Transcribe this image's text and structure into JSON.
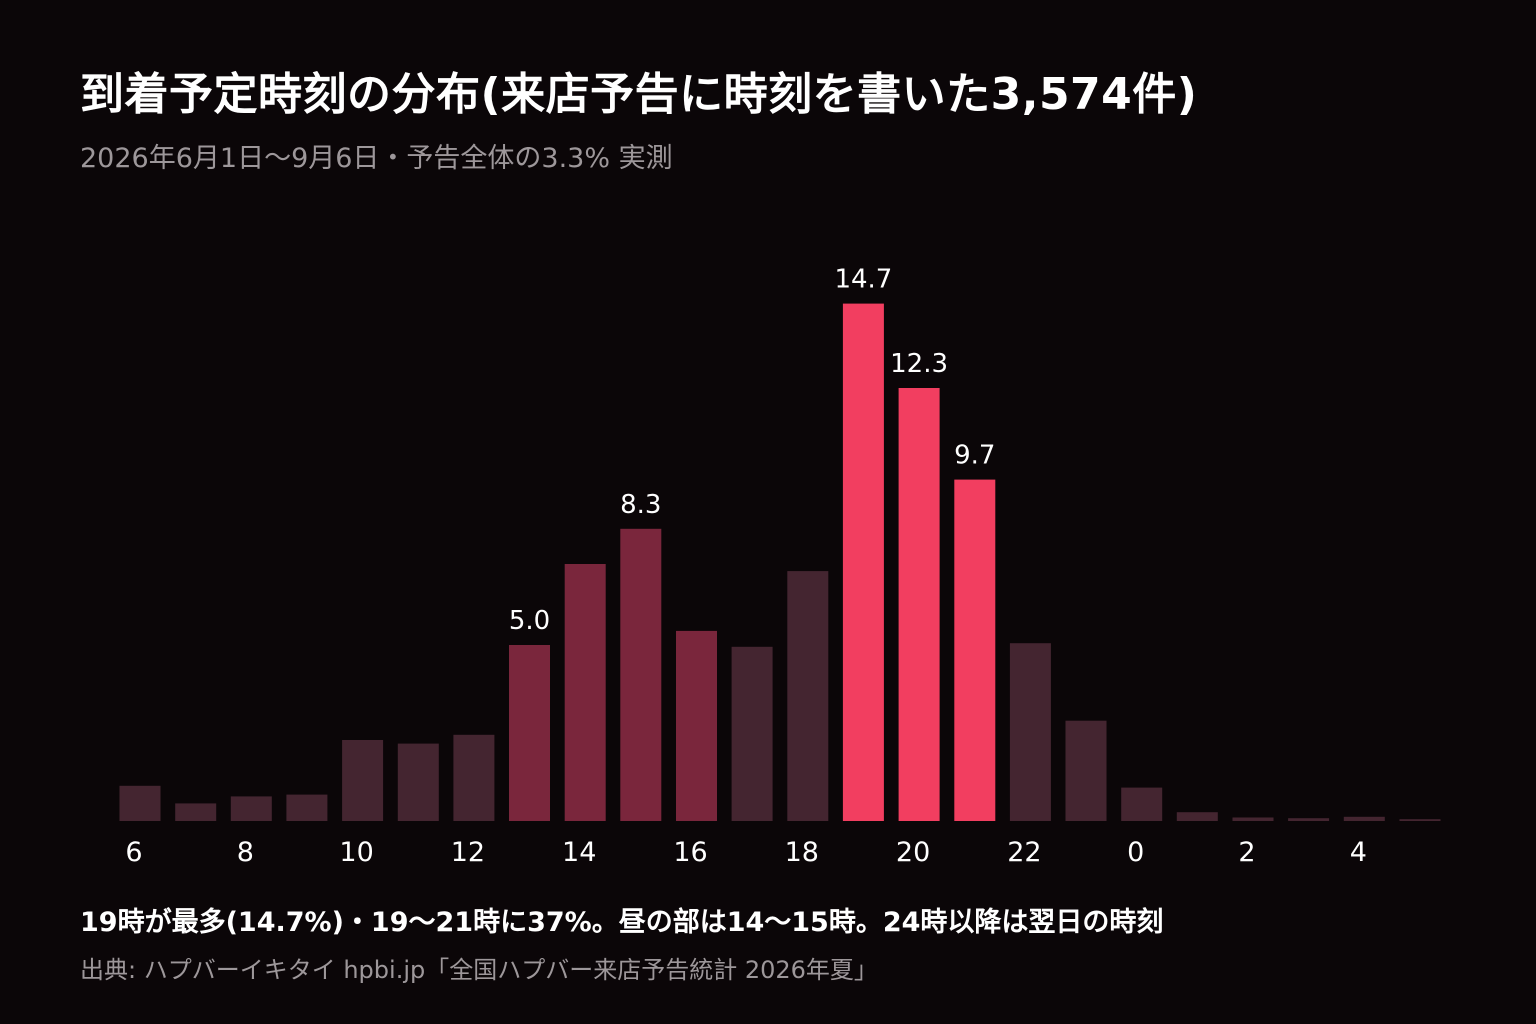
{
  "header": {
    "title": "到着予定時刻の分布(来店予告に時刻を書いた3,574件)",
    "subtitle": "2026年6月1日〜9月6日・予告全体の3.3% 実測"
  },
  "footer": {
    "caption": "19時が最多(14.7%)・19〜21時に37%。昼の部は14〜15時。24時以降は翌日の時刻",
    "source": "出典: ハプバーイキタイ hpbi.jp「全国ハプバー来店予告統計 2026年夏」"
  },
  "colors": {
    "background": "#0b0608",
    "bar_default": "#442530",
    "bar_midday": "#7a263c",
    "bar_peak": "#f23e60"
  },
  "chart_data": {
    "type": "bar",
    "title": "到着予定時刻の分布(来店予告に時刻を書いた3,574件)",
    "subtitle": "2026年6月1日〜9月6日・予告全体の3.3% 実測",
    "xlabel": "",
    "ylabel": "",
    "unit": "%",
    "ylim": [
      0,
      15
    ],
    "grid": false,
    "categories": [
      "6",
      "7",
      "8",
      "9",
      "10",
      "11",
      "12",
      "13",
      "14",
      "15",
      "16",
      "17",
      "18",
      "19",
      "20",
      "21",
      "22",
      "23",
      "0",
      "1",
      "2",
      "3",
      "4",
      "5"
    ],
    "tick_labels": [
      "6",
      "8",
      "10",
      "12",
      "14",
      "16",
      "18",
      "20",
      "22",
      "0",
      "2",
      "4"
    ],
    "values": [
      1.0,
      0.5,
      0.7,
      0.75,
      2.3,
      2.2,
      2.45,
      5.0,
      7.3,
      8.3,
      5.4,
      4.95,
      7.1,
      14.7,
      12.3,
      9.7,
      5.05,
      2.85,
      0.95,
      0.25,
      0.1,
      0.08,
      0.12,
      0.05
    ],
    "highlight": [
      "default",
      "default",
      "default",
      "default",
      "default",
      "default",
      "default",
      "midday",
      "midday",
      "midday",
      "midday",
      "default",
      "default",
      "peak",
      "peak",
      "peak",
      "default",
      "default",
      "default",
      "default",
      "default",
      "default",
      "default",
      "default"
    ],
    "data_labels": [
      {
        "category": "13",
        "text": "5.0"
      },
      {
        "category": "15",
        "text": "8.3"
      },
      {
        "category": "19",
        "text": "14.7"
      },
      {
        "category": "20",
        "text": "12.3"
      },
      {
        "category": "21",
        "text": "9.7"
      }
    ]
  }
}
